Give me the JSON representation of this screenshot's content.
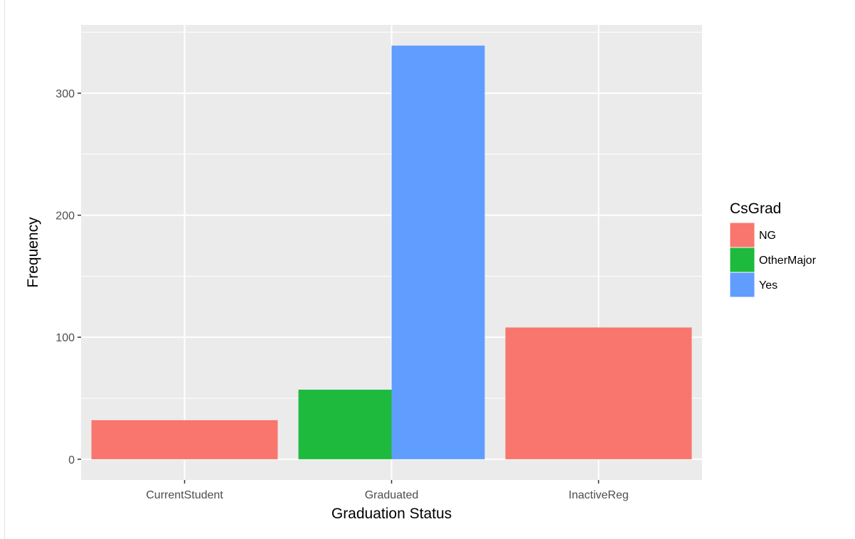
{
  "chart_data": {
    "type": "bar",
    "position": "dodge",
    "categories": [
      "CurrentStudent",
      "Graduated",
      "InactiveReg"
    ],
    "series": [
      {
        "name": "NG",
        "color": "#F8766D",
        "values": [
          32,
          null,
          108
        ]
      },
      {
        "name": "OtherMajor",
        "color": "#1DBA3E",
        "values": [
          null,
          57,
          null
        ]
      },
      {
        "name": "Yes",
        "color": "#619CFF",
        "values": [
          null,
          339,
          null
        ]
      }
    ],
    "xlabel": "Graduation Status",
    "ylabel": "Frequency",
    "ylim": [
      -17,
      356
    ],
    "yticks": [
      0,
      100,
      200,
      300
    ],
    "ytick_labels": [
      "0",
      "100",
      "200",
      "300"
    ],
    "grid": true,
    "panel_background": "#EBEBEB",
    "grid_color": "#FFFFFF",
    "legend": {
      "title": "CsGrad",
      "placement": "right",
      "entries": [
        "NG",
        "OtherMajor",
        "Yes"
      ]
    }
  }
}
